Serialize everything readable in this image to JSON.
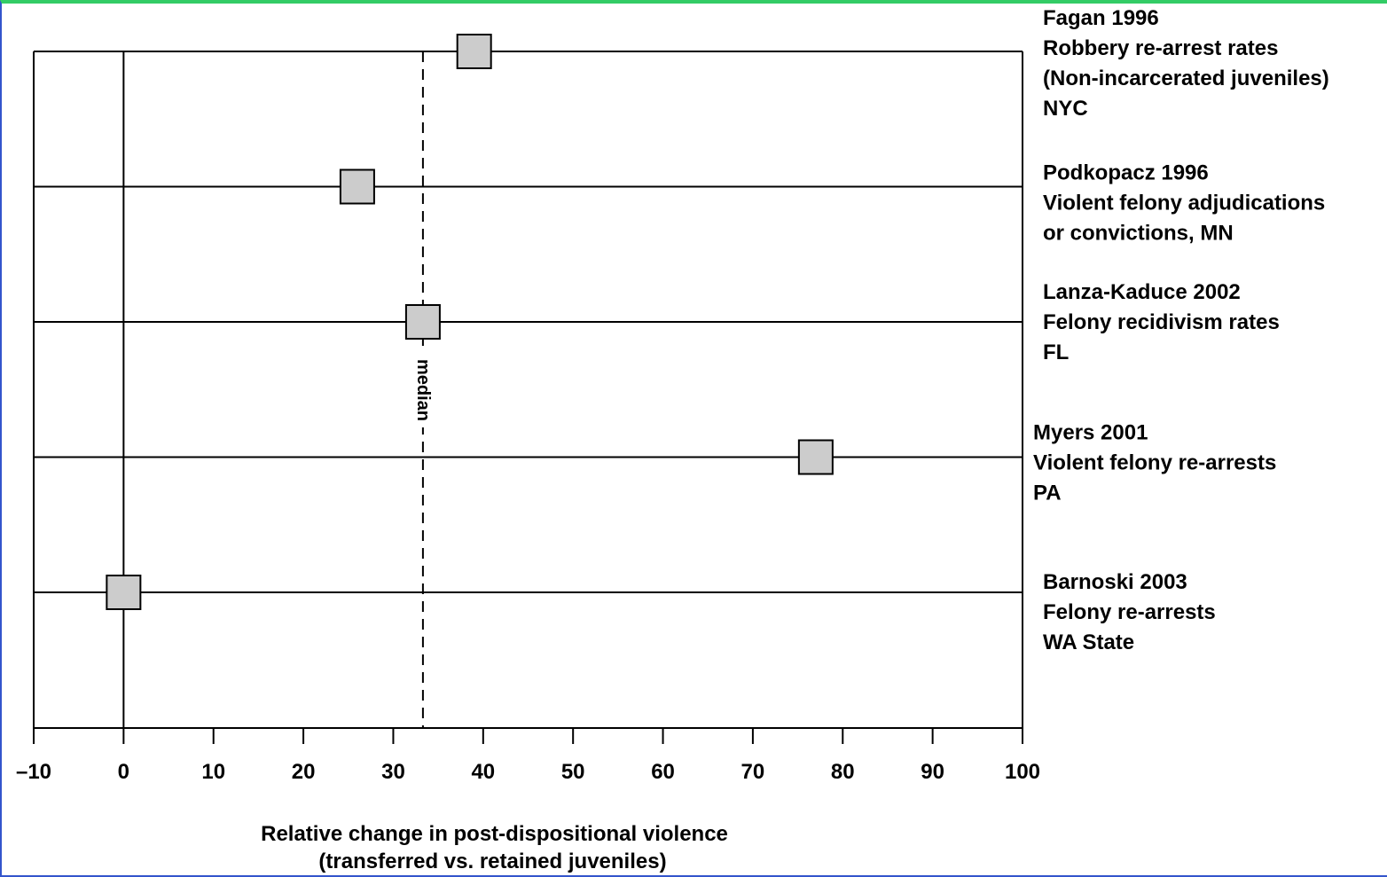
{
  "chart_data": {
    "type": "scatter",
    "title": "",
    "xlabel": "Relative change in post-dispositional violence (transferred vs. retained juveniles)",
    "xlabel_lines": [
      "Relative change in post-dispositional violence",
      "(transferred vs. retained juveniles)"
    ],
    "ylabel": "",
    "xlim": [
      -10,
      100
    ],
    "x_ticks": [
      -10,
      0,
      10,
      20,
      30,
      40,
      50,
      60,
      70,
      80,
      90,
      100
    ],
    "x_tick_labels": [
      "–10",
      "0",
      "10",
      "20",
      "30",
      "40",
      "50",
      "60",
      "70",
      "80",
      "90",
      "100"
    ],
    "median": {
      "value": 33.3,
      "label": "median"
    },
    "studies": [
      {
        "value": 39,
        "lines": [
          "Fagan 1996",
          "Robbery re-arrest rates",
          "(Non-incarcerated juveniles)",
          "NYC"
        ]
      },
      {
        "value": 26,
        "lines": [
          "Podkopacz 1996",
          "Violent felony adjudications",
          "or convictions, MN"
        ]
      },
      {
        "value": 33.3,
        "lines": [
          "Lanza-Kaduce 2002",
          "Felony recidivism rates",
          "FL"
        ]
      },
      {
        "value": 77,
        "lines": [
          "Myers 2001",
          "Violent felony re-arrests",
          "PA"
        ]
      },
      {
        "value": 0,
        "lines": [
          "Barnoski 2003",
          "Felony re-arrests",
          "WA State"
        ]
      }
    ],
    "grid": false,
    "colors": {
      "marker_fill": "#cccccc",
      "marker_stroke": "#000000",
      "lines": "#000000"
    }
  }
}
